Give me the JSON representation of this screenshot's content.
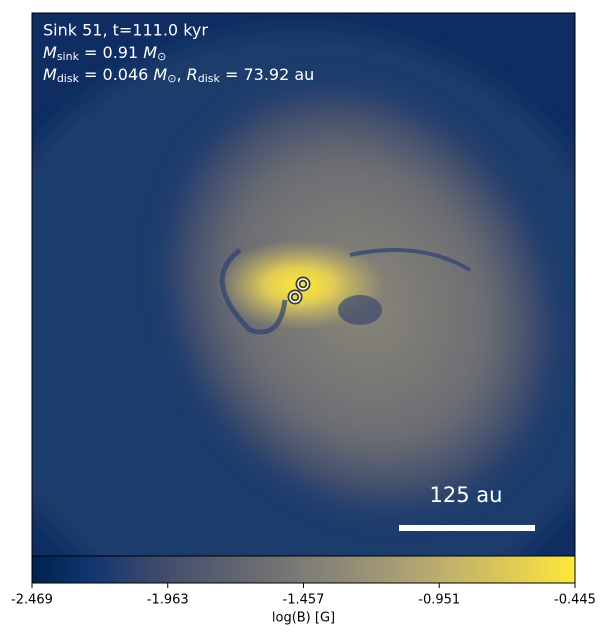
{
  "chart_data": {
    "type": "heatmap",
    "annotation": {
      "line1": "Sink 51, t=111.0 kyr",
      "line2": [
        "M",
        "sink",
        " = 0.91 ",
        "M",
        "⊙"
      ],
      "line3": [
        "M",
        "disk",
        " = 0.046 ",
        "M",
        "⊙",
        ", ",
        "R",
        "disk",
        " = 73.92 au"
      ]
    },
    "scale_bar_label": "125 au",
    "colorbar": {
      "label": "log(B) [G]",
      "clim": [
        -2.469,
        -0.445
      ],
      "ticks": [
        -2.469,
        -1.963,
        -1.457,
        -0.951,
        -0.445
      ],
      "colors": [
        "#00224e",
        "#123570",
        "#3b496c",
        "#575d6d",
        "#707173",
        "#8a8678",
        "#a59c74",
        "#c3b369",
        "#e1cc55",
        "#fee838"
      ]
    }
  }
}
